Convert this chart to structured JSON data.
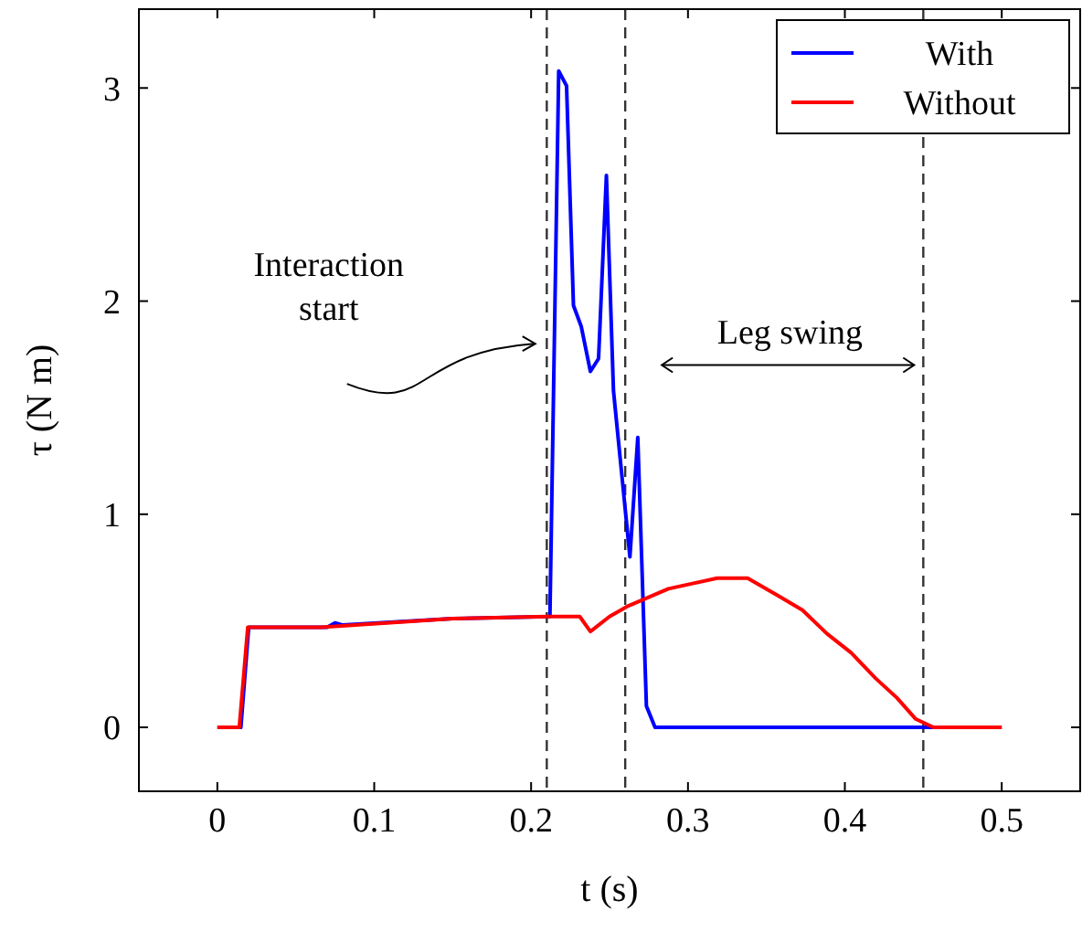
{
  "chart_data": {
    "type": "line",
    "xlabel": "t (s)",
    "ylabel": "τ (N m)",
    "xlim": [
      -0.05,
      0.55
    ],
    "ylim": [
      -0.3,
      3.37
    ],
    "xticks": [
      {
        "value": 0,
        "label": "0"
      },
      0.1,
      0.2,
      0.3,
      0.4,
      0.5
    ],
    "yticks": [
      0,
      1,
      2,
      3
    ],
    "grid": false,
    "legend": "top right",
    "line_style": "solid",
    "marker": "none",
    "series": [
      {
        "name": "With",
        "color": "#0000ff",
        "x": [
          0,
          0.015,
          0.02,
          0.07,
          0.075,
          0.08,
          0.15,
          0.212,
          0.2176,
          0.2226,
          0.227,
          0.232,
          0.2378,
          0.243,
          0.248,
          0.2525,
          0.263,
          0.268,
          0.2735,
          0.279,
          0.5
        ],
        "values": [
          0,
          0,
          0.47,
          0.47,
          0.49,
          0.48,
          0.51,
          0.52,
          3.08,
          3.01,
          1.98,
          1.88,
          1.67,
          1.73,
          2.59,
          1.58,
          0.8,
          1.36,
          0.1,
          0,
          0
        ]
      },
      {
        "name": "Without",
        "color": "#ff0000",
        "x": [
          0,
          0.014,
          0.0194,
          0.066,
          0.15,
          0.21,
          0.231,
          0.2378,
          0.25,
          0.262,
          0.2875,
          0.3186,
          0.338,
          0.357,
          0.373,
          0.3885,
          0.404,
          0.4196,
          0.433,
          0.445,
          0.4565,
          0.5
        ],
        "values": [
          0,
          0,
          0.47,
          0.47,
          0.51,
          0.52,
          0.52,
          0.45,
          0.52,
          0.57,
          0.65,
          0.7,
          0.7,
          0.62,
          0.55,
          0.44,
          0.35,
          0.23,
          0.14,
          0.04,
          0,
          0
        ]
      }
    ],
    "ref_lines": [
      {
        "axis": "x",
        "value": 0.21,
        "line_style": "dashed"
      },
      {
        "axis": "x",
        "value": 0.26,
        "line_style": "dashed"
      },
      {
        "axis": "x",
        "value": 0.45,
        "line_style": "dashed"
      }
    ],
    "annotations": [
      "Interaction start",
      "Leg swing"
    ]
  }
}
